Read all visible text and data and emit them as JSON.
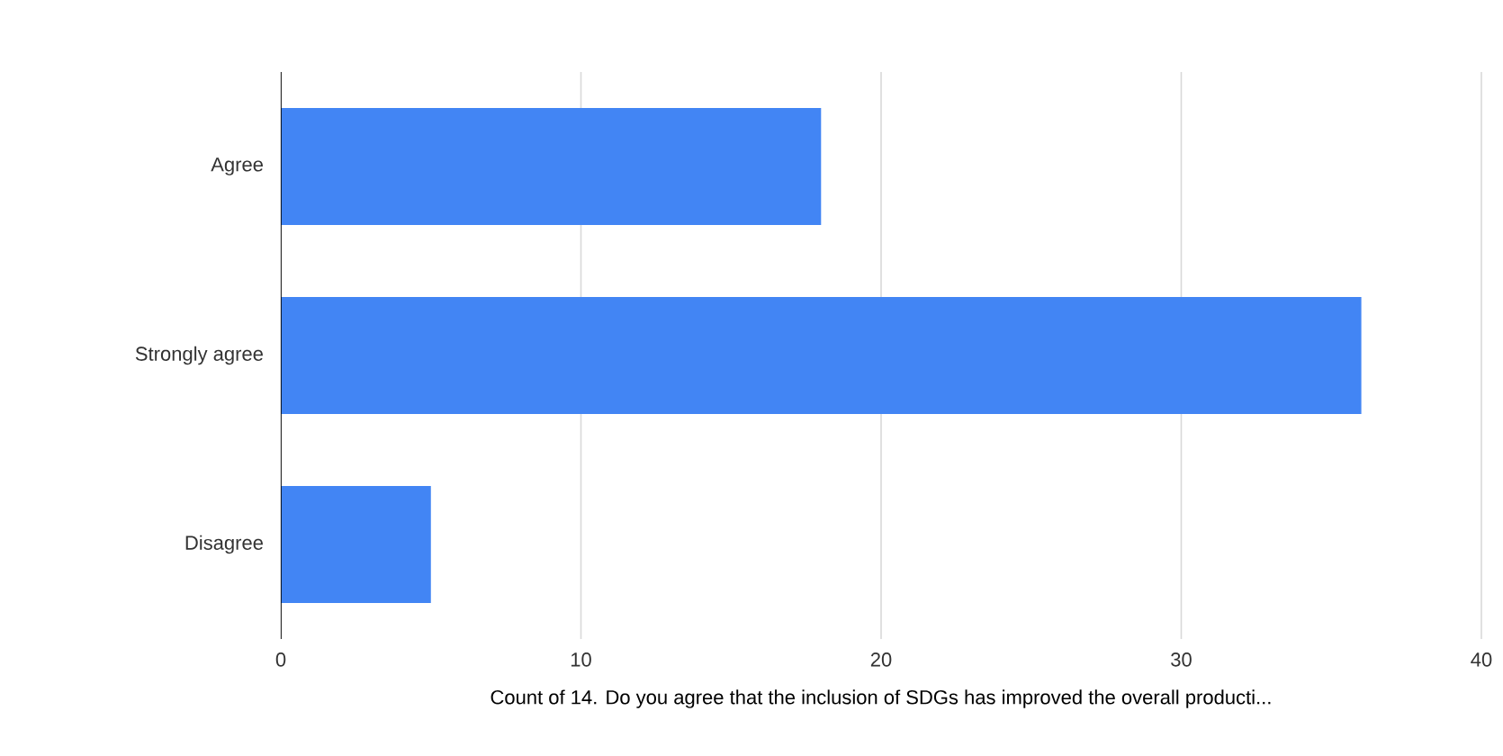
{
  "chart_data": {
    "type": "bar",
    "orientation": "horizontal",
    "categories": [
      "Agree",
      "Strongly agree",
      "Disagree"
    ],
    "values": [
      18,
      36,
      5
    ],
    "color": "#4285f4",
    "xlim": [
      0,
      40
    ],
    "xticks": [
      0,
      10,
      20,
      30,
      40
    ],
    "grid": "x",
    "xlabel": "Count of 14. Do you agree that the inclusion of SDGs has improved the overall producti..."
  }
}
